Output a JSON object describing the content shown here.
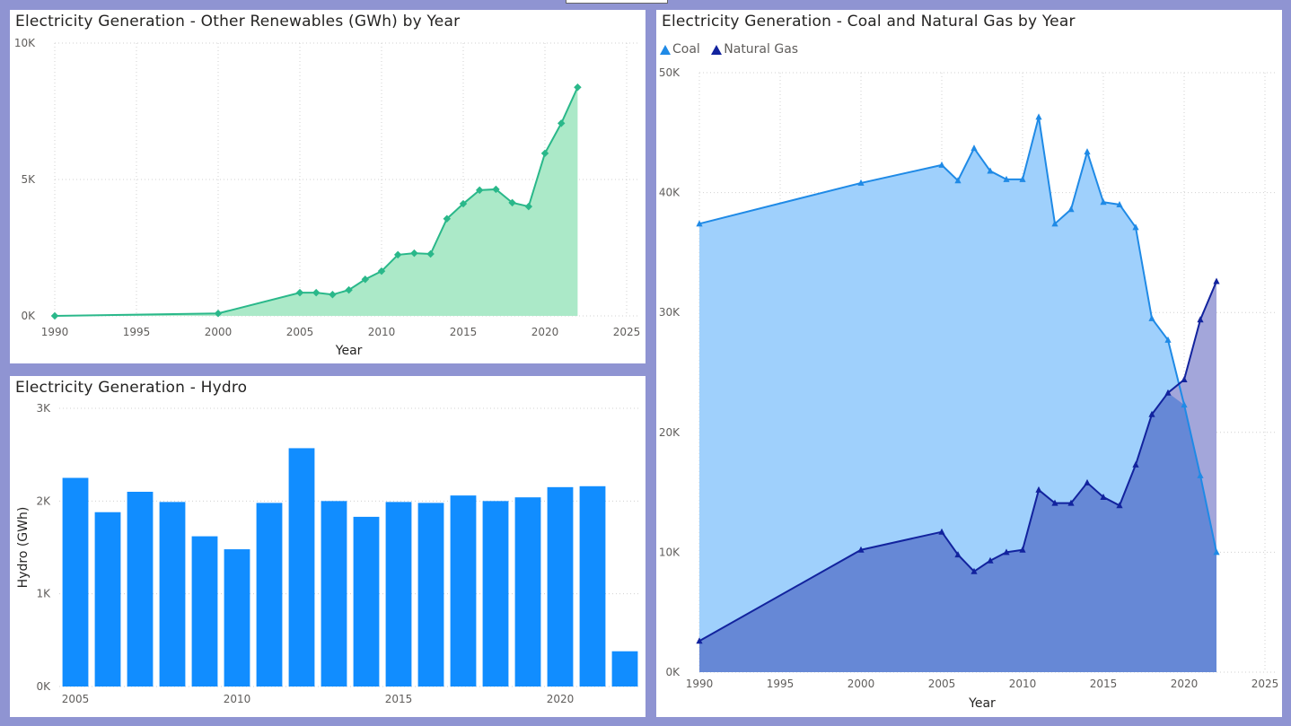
{
  "colors": {
    "renew_line": "#2ab88a",
    "renew_fill": "#abe9c8",
    "hydro_bar": "#118dff",
    "coal_line": "#1f8ae6",
    "coal_fill": "#9fd0fc",
    "gas_line": "#12239e",
    "gas_fill": "#6688d6",
    "gas_fill_top": "#a3a6da"
  },
  "panels": {
    "renew": {
      "title": "Electricity Generation - Other Renewables (GWh) by Year"
    },
    "hydro": {
      "title": "Electricity Generation - Hydro"
    },
    "coal": {
      "title": "Electricity Generation - Coal and Natural Gas by Year"
    }
  },
  "chart_data": [
    {
      "type": "area",
      "title": "Electricity Generation - Other Renewables (GWh) by Year",
      "xlabel": "Year",
      "ylabel": "",
      "xlim": [
        1990,
        2025
      ],
      "ylim": [
        0,
        10000
      ],
      "x_ticks": [
        1990,
        1995,
        2000,
        2005,
        2010,
        2015,
        2020,
        2025
      ],
      "y_ticks": [
        {
          "value": 0,
          "label": "0K"
        },
        {
          "value": 5000,
          "label": "5K"
        },
        {
          "value": 10000,
          "label": "10K"
        }
      ],
      "grid": true,
      "series": [
        {
          "x": [
            1990,
            2000,
            2005,
            2006,
            2007,
            2008,
            2009,
            2010,
            2011,
            2012,
            2013,
            2014,
            2015,
            2016,
            2017,
            2018,
            2019,
            2020,
            2021,
            2022
          ],
          "values": [
            0,
            90,
            850,
            850,
            780,
            950,
            1340,
            1640,
            2240,
            2300,
            2270,
            3560,
            4110,
            4610,
            4640,
            4150,
            4010,
            5960,
            7060,
            8380
          ]
        }
      ]
    },
    {
      "type": "bar",
      "title": "Electricity Generation - Hydro",
      "xlabel": "",
      "ylabel": "Hydro (GWh)",
      "xlim": [
        2004.5,
        2022.5
      ],
      "ylim": [
        0,
        3000
      ],
      "x_ticks": [
        2005,
        2010,
        2015,
        2020
      ],
      "y_ticks": [
        {
          "value": 0,
          "label": "0K"
        },
        {
          "value": 1000,
          "label": "1K"
        },
        {
          "value": 2000,
          "label": "2K"
        },
        {
          "value": 3000,
          "label": "3K"
        }
      ],
      "grid": true,
      "categories": [
        2005,
        2006,
        2007,
        2008,
        2009,
        2010,
        2011,
        2012,
        2013,
        2014,
        2015,
        2016,
        2017,
        2018,
        2019,
        2020,
        2021,
        2022
      ],
      "values": [
        2250,
        1880,
        2100,
        1990,
        1620,
        1480,
        1980,
        2570,
        2000,
        1830,
        1990,
        1980,
        2060,
        2000,
        2040,
        2150,
        2160,
        380
      ]
    },
    {
      "type": "area",
      "title": "Electricity Generation - Coal and Natural Gas by Year",
      "xlabel": "Year",
      "ylabel": "",
      "xlim": [
        1990,
        2025
      ],
      "ylim": [
        0,
        50000
      ],
      "x_ticks": [
        1990,
        1995,
        2000,
        2005,
        2010,
        2015,
        2020,
        2025
      ],
      "y_ticks": [
        {
          "value": 0,
          "label": "0K"
        },
        {
          "value": 10000,
          "label": "10K"
        },
        {
          "value": 20000,
          "label": "20K"
        },
        {
          "value": 30000,
          "label": "30K"
        },
        {
          "value": 40000,
          "label": "40K"
        },
        {
          "value": 50000,
          "label": "50K"
        }
      ],
      "grid": true,
      "legend_position": "top-left",
      "x": [
        1990,
        2000,
        2005,
        2006,
        2007,
        2008,
        2009,
        2010,
        2011,
        2012,
        2013,
        2014,
        2015,
        2016,
        2017,
        2018,
        2019,
        2020,
        2021,
        2022
      ],
      "series": [
        {
          "name": "Coal",
          "values": [
            37400,
            40800,
            42300,
            41000,
            43700,
            41800,
            41100,
            41100,
            46300,
            37400,
            38600,
            43400,
            39200,
            39000,
            37100,
            29500,
            27700,
            22300,
            16400,
            10000
          ]
        },
        {
          "name": "Natural Gas",
          "values": [
            2600,
            10200,
            11700,
            9800,
            8400,
            9300,
            10000,
            10200,
            15200,
            14100,
            14100,
            15800,
            14600,
            13900,
            17300,
            21500,
            23300,
            24400,
            29400,
            32600
          ]
        }
      ]
    }
  ]
}
